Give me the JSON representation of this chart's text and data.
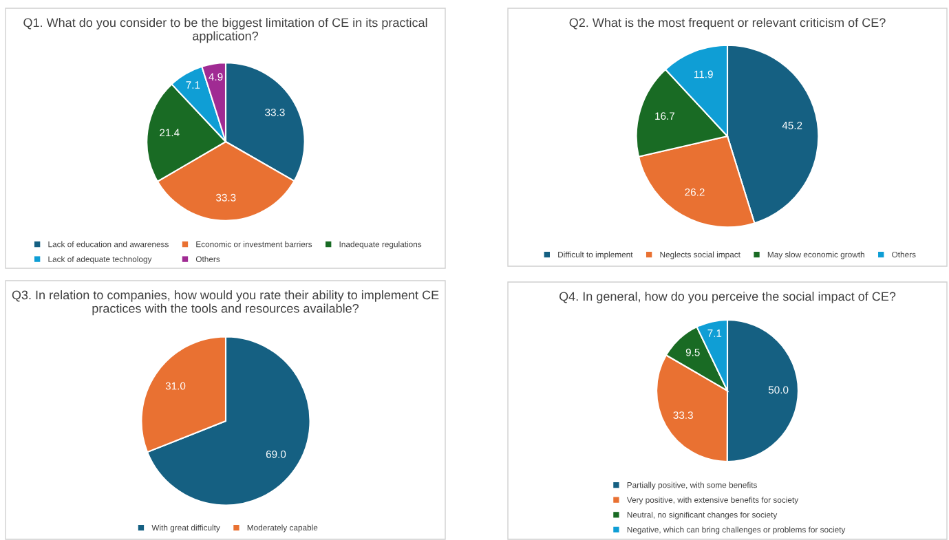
{
  "chart_data": [
    {
      "type": "pie",
      "title": "Q1. What do you consider to be the biggest limitation of CE in its practical application?",
      "categories": [
        "Lack of education and awareness",
        "Economic or investment barriers",
        "Inadequate regulations",
        "Lack of adequate technology",
        "Others"
      ],
      "values": [
        33.3,
        33.3,
        21.4,
        7.1,
        4.9
      ],
      "colors": [
        "#156082",
        "#e97132",
        "#196b24",
        "#0f9ed5",
        "#a02b93"
      ],
      "value_labels": [
        "33.3",
        "33.3",
        "21.4",
        "7.1",
        "4.9"
      ],
      "legend": "bottom"
    },
    {
      "type": "pie",
      "title": "Q2. What is the most frequent or relevant criticism of CE?",
      "categories": [
        "Difficult to implement",
        "Neglects social impact",
        "May slow economic growth",
        "Others"
      ],
      "values": [
        45.2,
        26.2,
        16.7,
        11.9
      ],
      "colors": [
        "#156082",
        "#e97132",
        "#196b24",
        "#0f9ed5"
      ],
      "value_labels": [
        "45.2",
        "26.2",
        "16.7",
        "11.9"
      ],
      "legend": "bottom"
    },
    {
      "type": "pie",
      "title": "Q3. In relation to companies, how would you rate their ability to implement CE practices with the tools and resources available?",
      "categories": [
        "With great difficulty",
        "Moderately capable"
      ],
      "values": [
        69.0,
        31.0
      ],
      "colors": [
        "#156082",
        "#e97132"
      ],
      "value_labels": [
        "69.0",
        "31.0"
      ],
      "legend": "bottom"
    },
    {
      "type": "pie",
      "title": "Q4. In general, how do you perceive the social impact of CE?",
      "categories": [
        "Partially positive, with some benefits",
        "Very positive, with extensive benefits for society",
        "Neutral, no significant changes for society",
        "Negative, which can bring challenges or problems for society"
      ],
      "values": [
        50.0,
        33.3,
        9.5,
        7.1
      ],
      "colors": [
        "#156082",
        "#e97132",
        "#196b24",
        "#0f9ed5"
      ],
      "value_labels": [
        "50.0",
        "33.3",
        "9.5",
        "7.1"
      ],
      "legend": "bottom"
    }
  ]
}
